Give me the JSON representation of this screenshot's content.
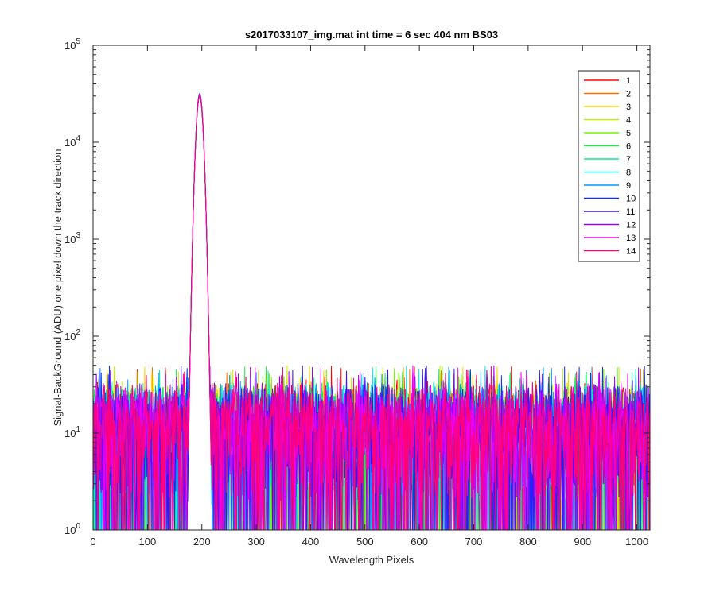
{
  "chart_data": {
    "type": "line",
    "title": "s2017033107_img.mat int time = 6 sec  404 nm BS03",
    "xlabel": "Wavelength Pixels",
    "ylabel": "Signal-BackGround (ADU) one pixel down the track direction",
    "xlim": [
      0,
      1024
    ],
    "ylim": [
      1,
      100000
    ],
    "yscale": "log",
    "grid": false,
    "legend_position": "top-right",
    "x_ticks": [
      0,
      100,
      200,
      300,
      400,
      500,
      600,
      700,
      800,
      900,
      1000
    ],
    "x_tick_labels": [
      "0",
      "100",
      "200",
      "300",
      "400",
      "500",
      "600",
      "700",
      "800",
      "900",
      "1000"
    ],
    "y_ticks": [
      1,
      10,
      100,
      1000,
      10000,
      100000
    ],
    "y_tick_labels": [
      {
        "base": "10",
        "exp": "0"
      },
      {
        "base": "10",
        "exp": "1"
      },
      {
        "base": "10",
        "exp": "2"
      },
      {
        "base": "10",
        "exp": "3"
      },
      {
        "base": "10",
        "exp": "4"
      },
      {
        "base": "10",
        "exp": "5"
      }
    ],
    "peak": {
      "center_x": 196,
      "peak_value": 32000,
      "width_sigma": 5
    },
    "noise": {
      "typical_range": [
        2,
        35
      ],
      "max_spike": 50
    },
    "series": [
      {
        "name": "1",
        "color": "#ff0000"
      },
      {
        "name": "2",
        "color": "#ff7300"
      },
      {
        "name": "3",
        "color": "#ffd200"
      },
      {
        "name": "4",
        "color": "#c8f000"
      },
      {
        "name": "5",
        "color": "#73f500"
      },
      {
        "name": "6",
        "color": "#14f03c"
      },
      {
        "name": "7",
        "color": "#00f096"
      },
      {
        "name": "8",
        "color": "#00f0f0"
      },
      {
        "name": "9",
        "color": "#0096ff"
      },
      {
        "name": "10",
        "color": "#0a32ff"
      },
      {
        "name": "11",
        "color": "#3c14f5"
      },
      {
        "name": "12",
        "color": "#a000f5"
      },
      {
        "name": "13",
        "color": "#f000f0"
      },
      {
        "name": "14",
        "color": "#ff0078"
      }
    ]
  }
}
